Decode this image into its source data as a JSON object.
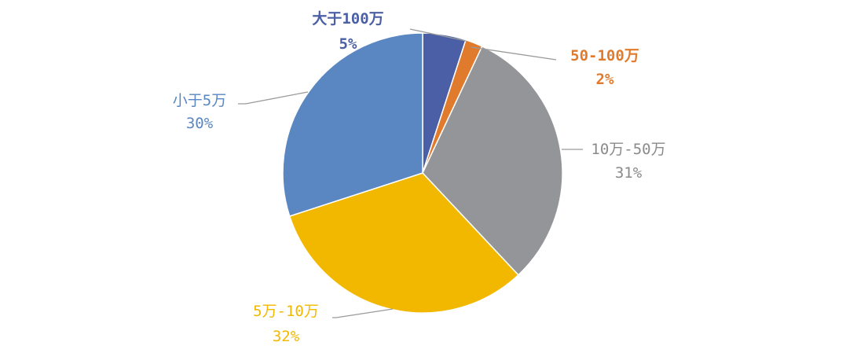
{
  "chart_data": {
    "type": "pie",
    "title": "",
    "start_angle_deg": 0,
    "direction": "clockwise",
    "slices": [
      {
        "label": "大于100万",
        "value": 5,
        "value_label": "5%",
        "color": "#4a5fa5",
        "label_color": "#4a5fa5",
        "bold": true
      },
      {
        "label": "50-100万",
        "value": 2,
        "value_label": "2%",
        "color": "#e07b2e",
        "label_color": "#e07b2e",
        "bold": true
      },
      {
        "label": "10万-50万",
        "value": 31,
        "value_label": "31%",
        "color": "#939598",
        "label_color": "#8a8a8a",
        "bold": false
      },
      {
        "label": "5万-10万",
        "value": 32,
        "value_label": "32%",
        "color": "#f2b800",
        "label_color": "#f2b800",
        "bold": false
      },
      {
        "label": "小于5万",
        "value": 30,
        "value_label": "30%",
        "color": "#5a87c2",
        "label_color": "#5a87c2",
        "bold": false
      }
    ]
  }
}
